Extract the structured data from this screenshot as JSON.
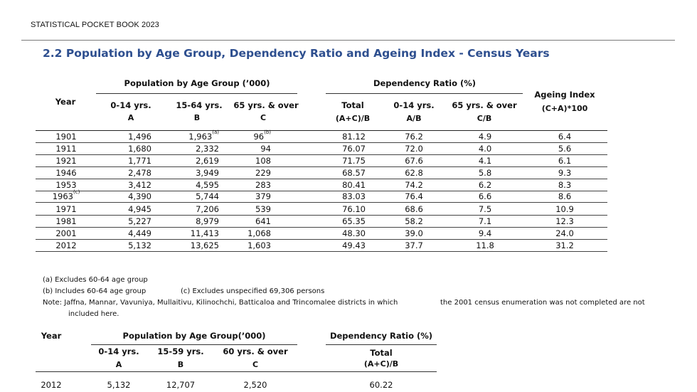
{
  "header": {
    "text": "STATISTICAL POCKET BOOK 2023"
  },
  "title": "2.2 Population by Age Group, Dependency Ratio and Ageing Index - Census Years",
  "table1": {
    "year_header": "Year",
    "group_pop": "Population by Age Group (’000)",
    "group_dep": "Dependency Ratio (%)",
    "ageing_line1": "Ageing Index",
    "ageing_line2": "(C+A)*100",
    "col_014": "0-14 yrs.",
    "col_014_sub": "A",
    "col_1564": "15-64 yrs.",
    "col_1564_sub": "B",
    "col_65": "65 yrs. & over",
    "col_65_sub": "C",
    "dep_total": "Total",
    "dep_total_sub": "(A+C)/B",
    "dep_014": "0-14 yrs.",
    "dep_014_sub": "A/B",
    "dep_65": "65 yrs. & over",
    "dep_65_sub": "C/B",
    "rows": [
      {
        "year": "1901",
        "year_sup": "",
        "a": "1,496",
        "b": "1,963",
        "b_sup": "(a)",
        "c": "96",
        "c_sup": "(b)",
        "total": "81.12",
        "d014": "76.2",
        "d65": "4.9",
        "ageing": "6.4"
      },
      {
        "year": "1911",
        "year_sup": "",
        "a": "1,680",
        "b": "2,332",
        "b_sup": "",
        "c": "94",
        "c_sup": "",
        "total": "76.07",
        "d014": "72.0",
        "d65": "4.0",
        "ageing": "5.6"
      },
      {
        "year": "1921",
        "year_sup": "",
        "a": "1,771",
        "b": "2,619",
        "b_sup": "",
        "c": "108",
        "c_sup": "",
        "total": "71.75",
        "d014": "67.6",
        "d65": "4.1",
        "ageing": "6.1"
      },
      {
        "year": "1946",
        "year_sup": "",
        "a": "2,478",
        "b": "3,949",
        "b_sup": "",
        "c": "229",
        "c_sup": "",
        "total": "68.57",
        "d014": "62.8",
        "d65": "5.8",
        "ageing": "9.3"
      },
      {
        "year": "1953",
        "year_sup": "",
        "a": "3,412",
        "b": "4,595",
        "b_sup": "",
        "c": "283",
        "c_sup": "",
        "total": "80.41",
        "d014": "74.2",
        "d65": "6.2",
        "ageing": "8.3"
      },
      {
        "year": "1963",
        "year_sup": "(c)",
        "a": "4,390",
        "b": "5,744",
        "b_sup": "",
        "c": "379",
        "c_sup": "",
        "total": "83.03",
        "d014": "76.4",
        "d65": "6.6",
        "ageing": "8.6"
      },
      {
        "year": "1971",
        "year_sup": "",
        "a": "4,945",
        "b": "7,206",
        "b_sup": "",
        "c": "539",
        "c_sup": "",
        "total": "76.10",
        "d014": "68.6",
        "d65": "7.5",
        "ageing": "10.9"
      },
      {
        "year": "1981",
        "year_sup": "",
        "a": "5,227",
        "b": "8,979",
        "b_sup": "",
        "c": "641",
        "c_sup": "",
        "total": "65.35",
        "d014": "58.2",
        "d65": "7.1",
        "ageing": "12.3"
      },
      {
        "year": "2001",
        "year_sup": "",
        "a": "4,449",
        "b": "11,413",
        "b_sup": "",
        "c": "1,068",
        "c_sup": "",
        "total": "48.30",
        "d014": "39.0",
        "d65": "9.4",
        "ageing": "24.0"
      },
      {
        "year": "2012",
        "year_sup": "",
        "a": "5,132",
        "b": "13,625",
        "b_sup": "",
        "c": "1,603",
        "c_sup": "",
        "total": "49.43",
        "d014": "37.7",
        "d65": "11.8",
        "ageing": "31.2"
      }
    ]
  },
  "notes": {
    "a": "(a)  Excludes 60-64 age group",
    "b": "(b)  Includes 60-64 age group",
    "c": "(c) Excludes unspecified 69,306 persons",
    "note_line1": "Note: Jaffna, Mannar, Vavuniya, Mullaitivu, Kilinochchi, Batticaloa and Trincomalee districts in which",
    "note_line1b": "the 2001 census enumeration was not completed are not",
    "note_line2": "included here."
  },
  "table2": {
    "year_header": "Year",
    "group_pop": "Population by Age Group(’000)",
    "group_dep": "Dependency Ratio (%)",
    "col_014": "0-14 yrs.",
    "col_014_sub": "A",
    "col_1559": "15-59 yrs.",
    "col_1559_sub": "B",
    "col_60": "60 yrs. & over",
    "col_60_sub": "C",
    "dep_total": "Total",
    "dep_total_sub": "(A+C)/B",
    "row": {
      "year": "2012",
      "a": "5,132",
      "b": "12,707",
      "c": "2,520",
      "total": "60.22"
    }
  }
}
